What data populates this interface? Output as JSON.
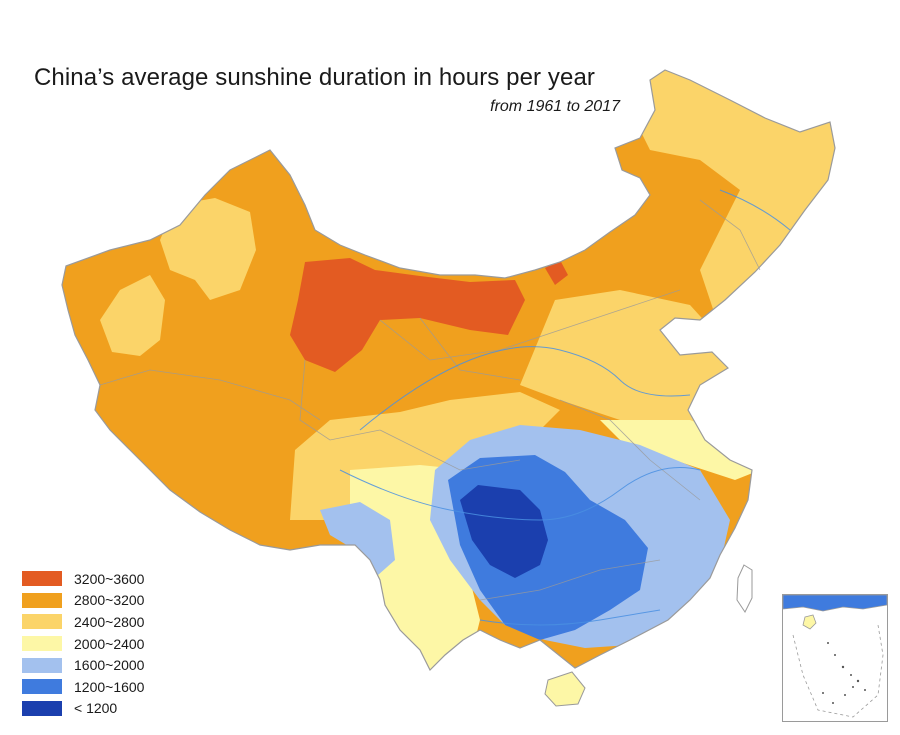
{
  "title": "China’s average sunshine duration in hours per year",
  "subtitle": "from 1961 to 2017",
  "legend": [
    {
      "label": "3200~3600",
      "color": "#e35b22"
    },
    {
      "label": "2800~3200",
      "color": "#f0a01e"
    },
    {
      "label": "2400~2800",
      "color": "#fbd469"
    },
    {
      "label": "2000~2400",
      "color": "#fdf7a6"
    },
    {
      "label": "1600~2000",
      "color": "#a3c1ee"
    },
    {
      "label": "1200~1600",
      "color": "#3f7bde"
    },
    {
      "label": "< 1200",
      "color": "#1b3fae"
    }
  ],
  "colors": {
    "boundary": "#9a9a9a",
    "river": "#4a90e2",
    "inset_border": "#9a9a9a"
  }
}
